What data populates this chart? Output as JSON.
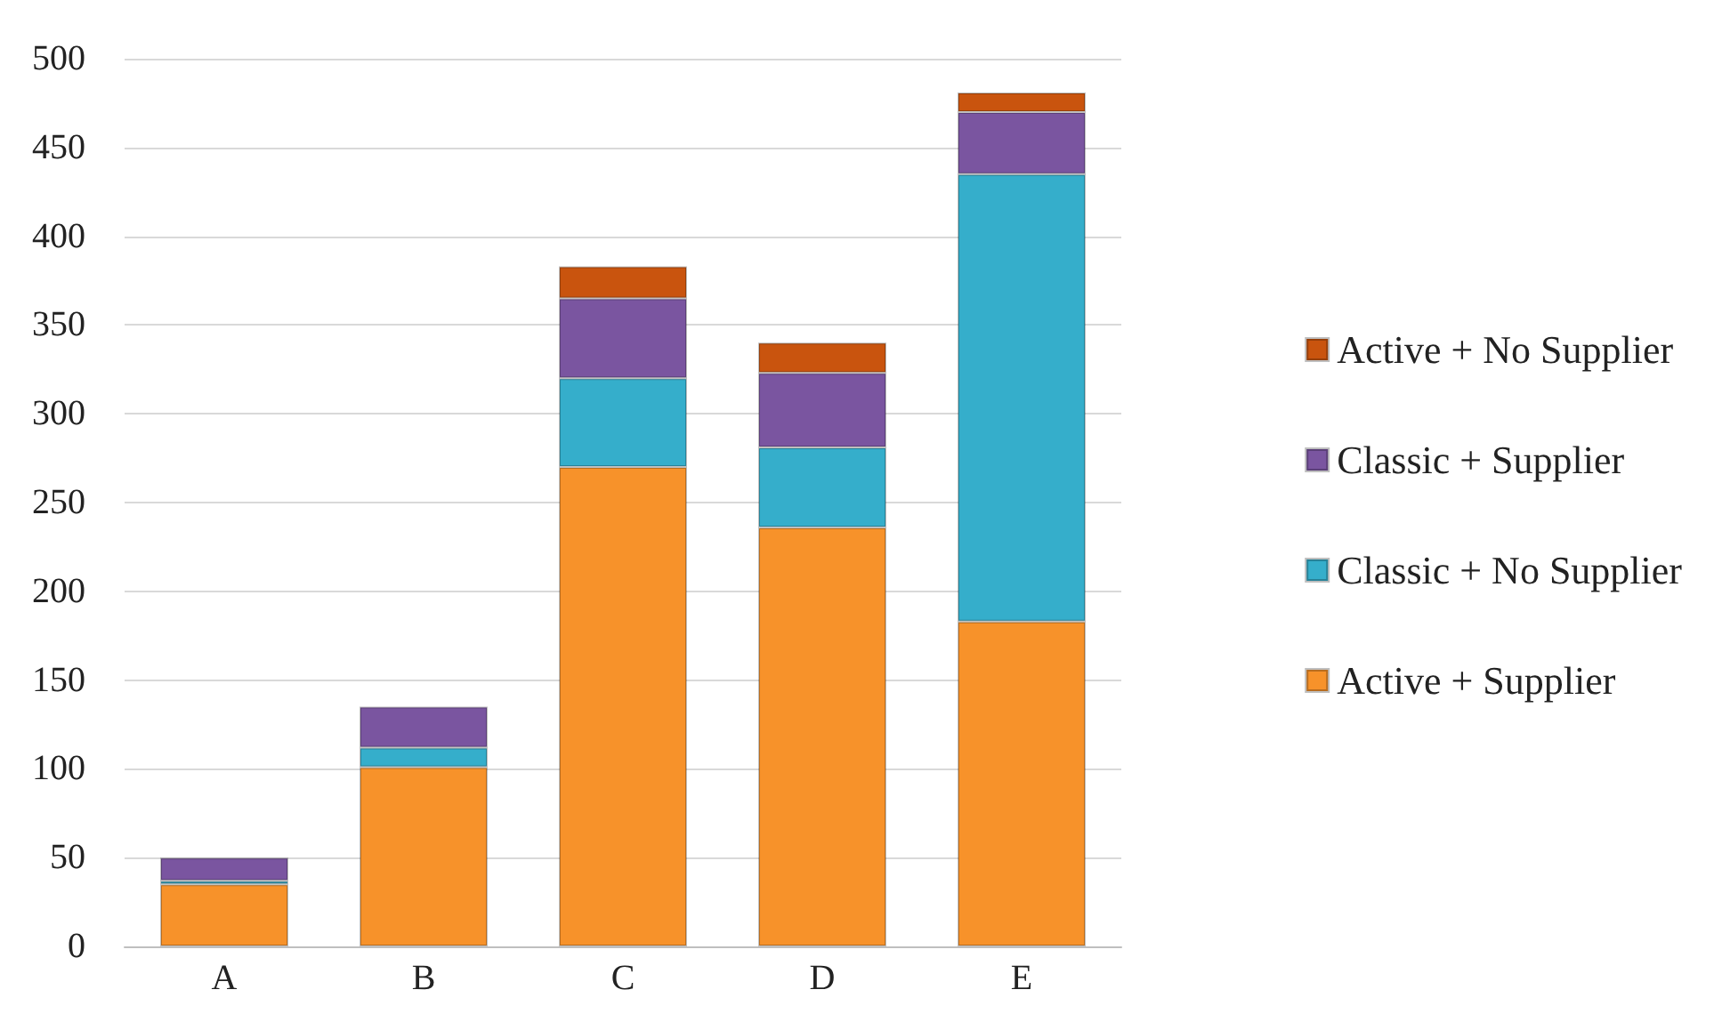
{
  "chart_data": {
    "type": "bar",
    "stacked": true,
    "categories": [
      "A",
      "B",
      "C",
      "D",
      "E"
    ],
    "series": [
      {
        "name": "Active + Supplier",
        "color": "#f7922a",
        "values": [
          35,
          101,
          270,
          236,
          183
        ]
      },
      {
        "name": "Classic + No Supplier",
        "color": "#35aecb",
        "values": [
          2,
          11,
          50,
          45,
          252
        ]
      },
      {
        "name": "Classic + Supplier",
        "color": "#7a55a0",
        "values": [
          13,
          23,
          45,
          42,
          35
        ]
      },
      {
        "name": "Active + No Supplier",
        "color": "#c9540e",
        "values": [
          0,
          0,
          18,
          17,
          11
        ]
      }
    ],
    "ylim": [
      0,
      500
    ],
    "yticks": [
      0,
      50,
      100,
      150,
      200,
      250,
      300,
      350,
      400,
      450,
      500
    ],
    "grid": "y",
    "legend": "right"
  }
}
